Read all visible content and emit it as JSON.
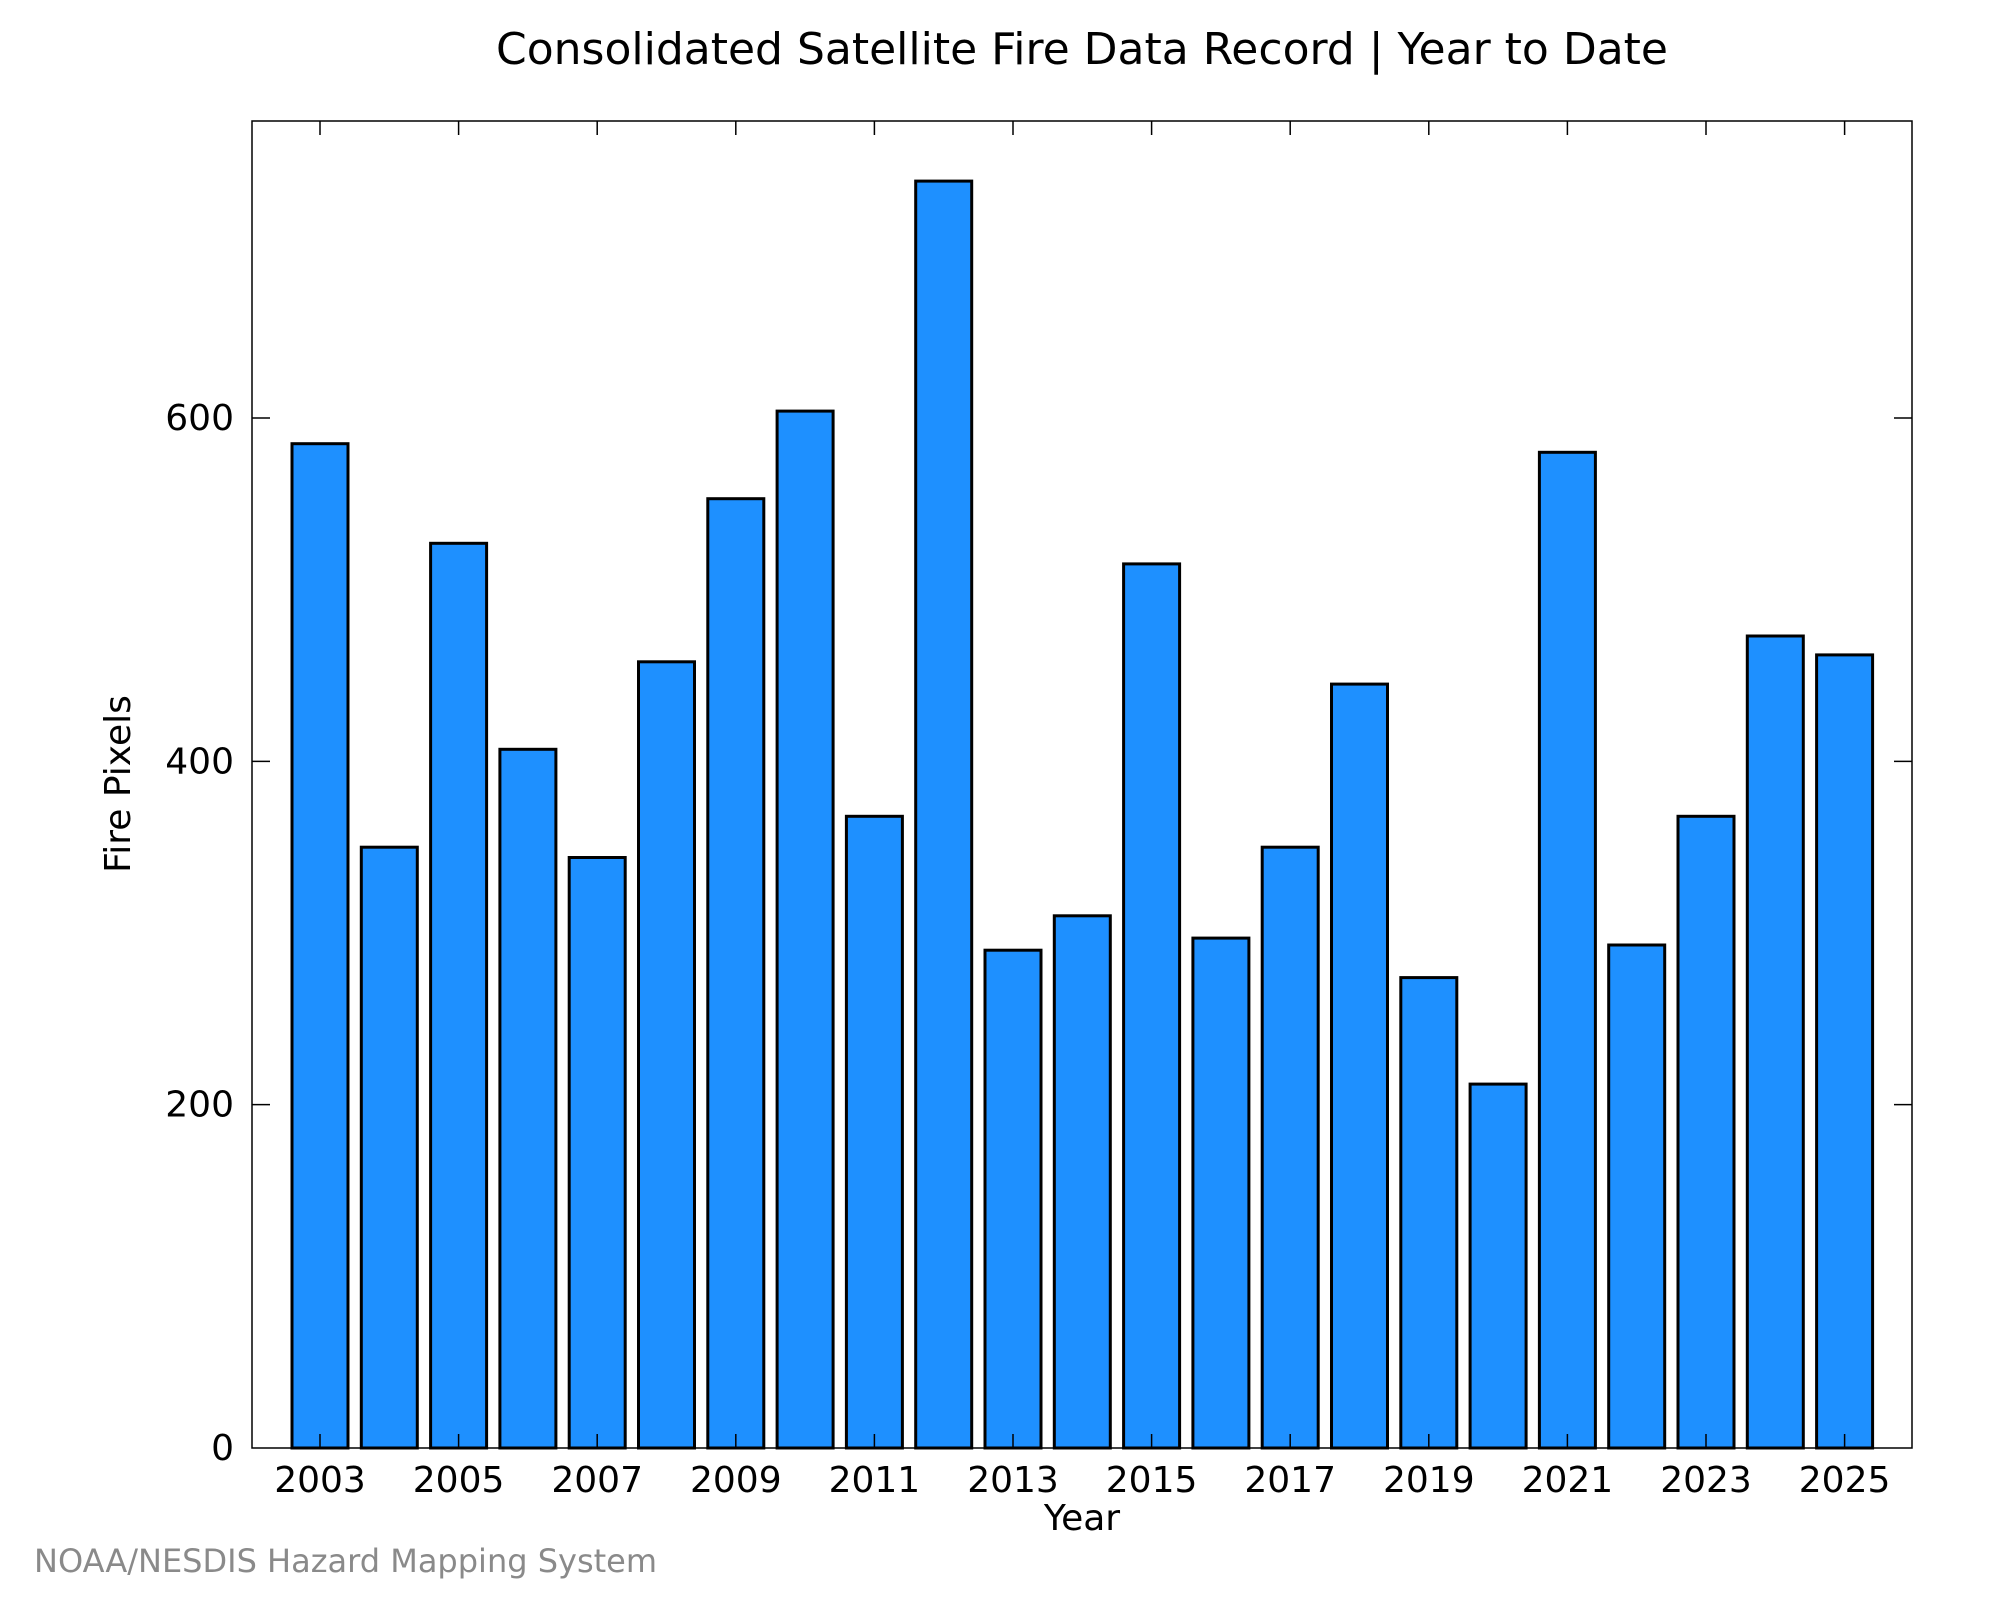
{
  "chart_data": {
    "type": "bar",
    "title": "Consolidated Satellite Fire Data Record | Year to Date",
    "xlabel": "Year",
    "ylabel": "Fire Pixels",
    "categories": [
      "2003",
      "2004",
      "2005",
      "2006",
      "2007",
      "2008",
      "2009",
      "2010",
      "2011",
      "2012",
      "2013",
      "2014",
      "2015",
      "2016",
      "2017",
      "2018",
      "2019",
      "2020",
      "2021",
      "2022",
      "2023",
      "2024",
      "2025"
    ],
    "values": [
      585,
      350,
      527,
      407,
      344,
      458,
      553,
      604,
      368,
      738,
      290,
      310,
      515,
      297,
      350,
      445,
      274,
      212,
      580,
      293,
      368,
      473,
      462
    ],
    "x_tick_labels": [
      "2003",
      "2005",
      "2007",
      "2009",
      "2011",
      "2013",
      "2015",
      "2017",
      "2019",
      "2021",
      "2023",
      "2025"
    ],
    "y_ticks": [
      0,
      200,
      400,
      600
    ],
    "ylim": [
      0,
      773
    ],
    "bar_color": "#1e90ff",
    "bar_edge_color": "#000000",
    "grid": false,
    "legend": "none"
  },
  "footer": {
    "credit": "NOAA/NESDIS Hazard Mapping System"
  }
}
